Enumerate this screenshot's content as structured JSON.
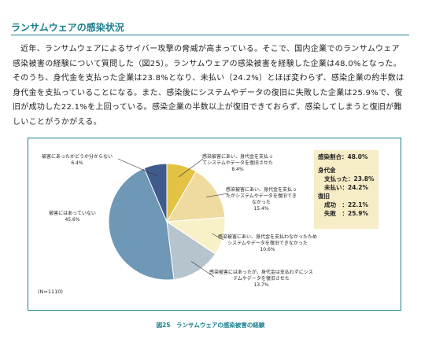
{
  "section_title": "ランサムウェアの感染状況",
  "paragraph": "近年、ランサムウェアによるサイバー攻撃の脅威が高まっている。そこで、国内企業でのランサムウェア感染被害の経験について質問した（図25）。ランサムウェアの感染被害を経験した企業は48.0%となった。そのうち、身代金を支払った企業は23.8%となり、未払い（24.2%）とほぼ変わらず、感染企業の約半数は身代金を支払っていることになる。また、感染後にシステムやデータの復旧に失敗した企業は25.9%で、復旧が成功した22.1%を上回っている。感染企業の半数以上が復旧できておらず、感染してしまうと復旧が難しいことがうかがえる。",
  "chart_data": {
    "type": "pie",
    "categories": [
      "感染被害にあい、身代金を支払ってシステムやデータを復旧させた",
      "感染被害にあい、身代金を支払ったがシステムやデータを復旧できなかった",
      "感染被害にあい、身代金を支払わなかったためシステムやデータを復旧できなかった",
      "感染被害にはあったが、身代金は支払わずにシステムやデータを復旧させた",
      "被害にはあっていない",
      "被害にあったかどうか分からない"
    ],
    "values": [
      8.4,
      15.4,
      10.6,
      13.7,
      45.6,
      6.4
    ],
    "value_labels": [
      "8.4%",
      "15.4%",
      "10.6%",
      "13.7%",
      "45.6%",
      "6.4%"
    ],
    "colors": [
      "#e3c244",
      "#efdba0",
      "#f8f1c8",
      "#b5c4cd",
      "#6f97b6",
      "#3e5b8b"
    ],
    "note": "(N=1110)"
  },
  "summary_box": {
    "infection_rate": "感染割合：48.0%",
    "ransom_heading": "身代金",
    "paid": "支払った：23.8%",
    "unpaid": "未払い：24.2%",
    "recovery_heading": "復旧",
    "success": "成功　：22.1%",
    "failure": "失敗　：25.9%"
  },
  "caption": "図25　ランサムウェアの感染被害の経験"
}
